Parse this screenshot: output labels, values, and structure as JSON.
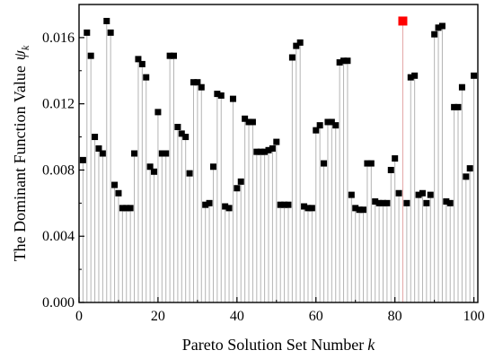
{
  "chart_data": {
    "type": "scatter",
    "xlabel": "Pareto Solution Set Number",
    "xlabel_var": "k",
    "ylabel": "The Dominant Function Value",
    "ylabel_var": "ψ",
    "ylabel_sub": "k",
    "xlim": [
      0,
      101
    ],
    "ylim": [
      0.0,
      0.018
    ],
    "x_ticks": [
      0,
      20,
      40,
      60,
      80,
      100
    ],
    "x_tick_labels": [
      "0",
      "20",
      "40",
      "60",
      "80",
      "100"
    ],
    "y_ticks": [
      0.0,
      0.004,
      0.008,
      0.012,
      0.016
    ],
    "y_tick_labels": [
      "0.000",
      "0.004",
      "0.008",
      "0.012",
      "0.016"
    ],
    "grid": false,
    "legend": "none",
    "series": [
      {
        "marker": "square",
        "color": "#000000",
        "stems": true,
        "stem_color": "#b4b4b4",
        "x": [
          1,
          2,
          3,
          4,
          5,
          6,
          7,
          8,
          9,
          10,
          11,
          12,
          13,
          14,
          15,
          16,
          17,
          18,
          19,
          20,
          21,
          22,
          23,
          24,
          25,
          26,
          27,
          28,
          29,
          30,
          31,
          32,
          33,
          34,
          35,
          36,
          37,
          38,
          39,
          40,
          41,
          42,
          43,
          44,
          45,
          46,
          47,
          48,
          49,
          50,
          51,
          52,
          53,
          54,
          55,
          56,
          57,
          58,
          59,
          60,
          61,
          62,
          63,
          64,
          65,
          66,
          67,
          68,
          69,
          70,
          71,
          72,
          73,
          74,
          75,
          76,
          77,
          78,
          79,
          80,
          81,
          83,
          84,
          85,
          86,
          87,
          88,
          89,
          90,
          91,
          92,
          93,
          94,
          95,
          96,
          97,
          98,
          99,
          100
        ],
        "values": [
          0.0086,
          0.0163,
          0.0149,
          0.01,
          0.0093,
          0.009,
          0.017,
          0.0163,
          0.0071,
          0.0066,
          0.0057,
          0.0057,
          0.0057,
          0.009,
          0.0147,
          0.0144,
          0.0136,
          0.0082,
          0.0079,
          0.0115,
          0.009,
          0.009,
          0.0149,
          0.0149,
          0.0106,
          0.0102,
          0.01,
          0.0078,
          0.0133,
          0.0133,
          0.013,
          0.0059,
          0.006,
          0.0082,
          0.0126,
          0.0125,
          0.0058,
          0.0057,
          0.0123,
          0.0069,
          0.0073,
          0.0111,
          0.0109,
          0.0109,
          0.0091,
          0.0091,
          0.0091,
          0.0092,
          0.0093,
          0.0097,
          0.0059,
          0.0059,
          0.0059,
          0.0148,
          0.0155,
          0.0157,
          0.0058,
          0.0057,
          0.0057,
          0.0104,
          0.0107,
          0.0084,
          0.0109,
          0.0109,
          0.0107,
          0.0145,
          0.0146,
          0.0146,
          0.0065,
          0.0057,
          0.0056,
          0.0056,
          0.0084,
          0.0084,
          0.0061,
          0.006,
          0.006,
          0.006,
          0.008,
          0.0087,
          0.0066,
          0.006,
          0.0136,
          0.0137,
          0.0065,
          0.0066,
          0.006,
          0.0065,
          0.0162,
          0.0166,
          0.0167,
          0.0061,
          0.006,
          0.0118,
          0.0118,
          0.013,
          0.0076,
          0.0081,
          0.0137
        ]
      },
      {
        "marker": "square",
        "color": "#ff0000",
        "stems": true,
        "stem_color": "#e3a6a6",
        "x": [
          82
        ],
        "values": [
          0.017
        ]
      }
    ]
  }
}
